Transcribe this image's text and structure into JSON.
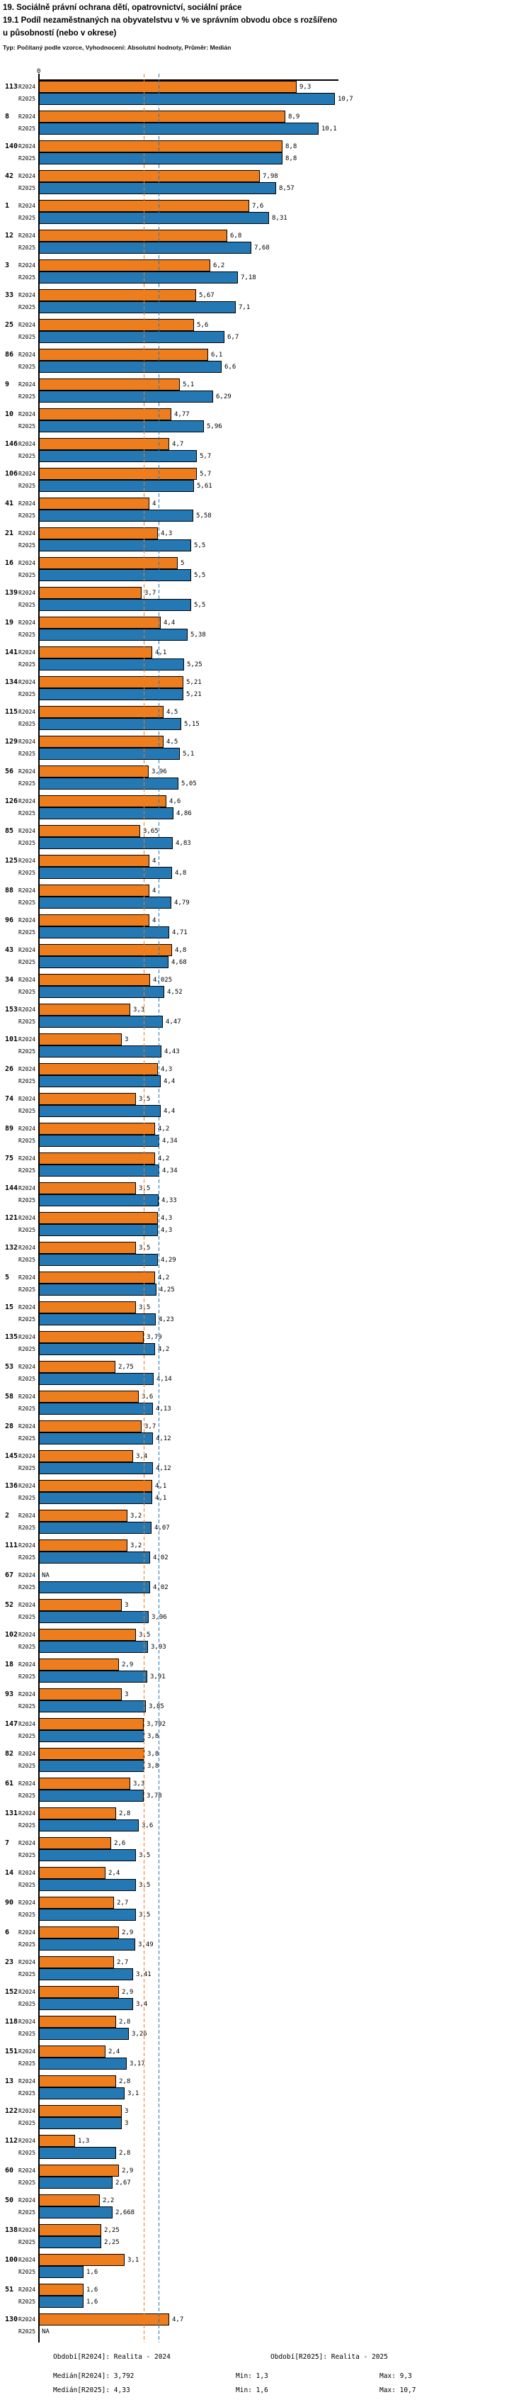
{
  "title": {
    "line1": "19. Sociálně právní ochrana dětí, opatrovnictví, sociální práce",
    "line2": "19.1 Podíl nezaměstnaných na obyvatelstvu v % ve správním obvodu obce s rozšířeno",
    "line3": "u působností (nebo v okrese)",
    "meta": "Typ: Počítaný podle vzorce, Vyhodnocení: Absolutní hodnoty, Průměr: Medián"
  },
  "chart_data": {
    "type": "bar",
    "orientation": "horizontal",
    "na_label": "NA",
    "axis": {
      "zero_label": "0",
      "xmin": 0,
      "xmax": 10.8,
      "grid": false
    },
    "series": [
      {
        "name": "R2024",
        "label": "Realita - 2024",
        "color": "#EE7D1E"
      },
      {
        "name": "R2025",
        "label": "Realita - 2025",
        "color": "#2478B4"
      }
    ],
    "medians": {
      "R2024": 3.792,
      "R2025": 4.33
    },
    "groups": [
      {
        "id": "113",
        "R2024": 9.3,
        "R2025": 10.7
      },
      {
        "id": "8",
        "R2024": 8.9,
        "R2025": 10.1
      },
      {
        "id": "140",
        "R2024": 8.8,
        "R2025": 8.8
      },
      {
        "id": "42",
        "R2024": 7.98,
        "R2025": 8.57
      },
      {
        "id": "1",
        "R2024": 7.6,
        "R2025": 8.31
      },
      {
        "id": "12",
        "R2024": 6.8,
        "R2025": 7.68
      },
      {
        "id": "3",
        "R2024": 6.2,
        "R2025": 7.18
      },
      {
        "id": "33",
        "R2024": 5.67,
        "R2025": 7.1
      },
      {
        "id": "25",
        "R2024": 5.6,
        "R2025": 6.7
      },
      {
        "id": "86",
        "R2024": 6.1,
        "R2025": 6.6
      },
      {
        "id": "9",
        "R2024": 5.1,
        "R2025": 6.29
      },
      {
        "id": "10",
        "R2024": 4.77,
        "R2025": 5.96
      },
      {
        "id": "146",
        "R2024": 4.7,
        "R2025": 5.7
      },
      {
        "id": "106",
        "R2024": 5.7,
        "R2025": 5.61
      },
      {
        "id": "41",
        "R2024": 4,
        "R2025": 5.58
      },
      {
        "id": "21",
        "R2024": 4.3,
        "R2025": 5.5
      },
      {
        "id": "16",
        "R2024": 5,
        "R2025": 5.5
      },
      {
        "id": "139",
        "R2024": 3.7,
        "R2025": 5.5
      },
      {
        "id": "19",
        "R2024": 4.4,
        "R2025": 5.38
      },
      {
        "id": "141",
        "R2024": 4.1,
        "R2025": 5.25
      },
      {
        "id": "134",
        "R2024": 5.21,
        "R2025": 5.21
      },
      {
        "id": "115",
        "R2024": 4.5,
        "R2025": 5.15
      },
      {
        "id": "129",
        "R2024": 4.5,
        "R2025": 5.1
      },
      {
        "id": "56",
        "R2024": 3.96,
        "R2025": 5.05
      },
      {
        "id": "126",
        "R2024": 4.6,
        "R2025": 4.86
      },
      {
        "id": "85",
        "R2024": 3.65,
        "R2025": 4.83
      },
      {
        "id": "125",
        "R2024": 4,
        "R2025": 4.8
      },
      {
        "id": "88",
        "R2024": 4,
        "R2025": 4.79
      },
      {
        "id": "96",
        "R2024": 4,
        "R2025": 4.71
      },
      {
        "id": "43",
        "R2024": 4.8,
        "R2025": 4.68
      },
      {
        "id": "34",
        "R2024": 4.025,
        "R2025": 4.52
      },
      {
        "id": "153",
        "R2024": 3.3,
        "R2025": 4.47
      },
      {
        "id": "101",
        "R2024": 3,
        "R2025": 4.43
      },
      {
        "id": "26",
        "R2024": 4.3,
        "R2025": 4.4
      },
      {
        "id": "74",
        "R2024": 3.5,
        "R2025": 4.4
      },
      {
        "id": "89",
        "R2024": 4.2,
        "R2025": 4.34
      },
      {
        "id": "75",
        "R2024": 4.2,
        "R2025": 4.34
      },
      {
        "id": "144",
        "R2024": 3.5,
        "R2025": 4.33
      },
      {
        "id": "121",
        "R2024": 4.3,
        "R2025": 4.3
      },
      {
        "id": "132",
        "R2024": 3.5,
        "R2025": 4.29
      },
      {
        "id": "5",
        "R2024": 4.2,
        "R2025": 4.25
      },
      {
        "id": "15",
        "R2024": 3.5,
        "R2025": 4.23
      },
      {
        "id": "135",
        "R2024": 3.79,
        "R2025": 4.2
      },
      {
        "id": "53",
        "R2024": 2.75,
        "R2025": 4.14
      },
      {
        "id": "58",
        "R2024": 3.6,
        "R2025": 4.13
      },
      {
        "id": "28",
        "R2024": 3.7,
        "R2025": 4.12
      },
      {
        "id": "145",
        "R2024": 3.4,
        "R2025": 4.12
      },
      {
        "id": "136",
        "R2024": 4.1,
        "R2025": 4.1
      },
      {
        "id": "2",
        "R2024": 3.2,
        "R2025": 4.07
      },
      {
        "id": "111",
        "R2024": 3.2,
        "R2025": 4.02
      },
      {
        "id": "67",
        "R2024": null,
        "R2025": 4.02
      },
      {
        "id": "52",
        "R2024": 3,
        "R2025": 3.96
      },
      {
        "id": "102",
        "R2024": 3.5,
        "R2025": 3.93
      },
      {
        "id": "18",
        "R2024": 2.9,
        "R2025": 3.91
      },
      {
        "id": "93",
        "R2024": 3,
        "R2025": 3.85
      },
      {
        "id": "147",
        "R2024": 3.792,
        "R2025": 3.8
      },
      {
        "id": "82",
        "R2024": 3.8,
        "R2025": 3.8
      },
      {
        "id": "61",
        "R2024": 3.3,
        "R2025": 3.78
      },
      {
        "id": "131",
        "R2024": 2.8,
        "R2025": 3.6
      },
      {
        "id": "7",
        "R2024": 2.6,
        "R2025": 3.5
      },
      {
        "id": "14",
        "R2024": 2.4,
        "R2025": 3.5
      },
      {
        "id": "90",
        "R2024": 2.7,
        "R2025": 3.5
      },
      {
        "id": "6",
        "R2024": 2.9,
        "R2025": 3.49
      },
      {
        "id": "23",
        "R2024": 2.7,
        "R2025": 3.41
      },
      {
        "id": "152",
        "R2024": 2.9,
        "R2025": 3.4
      },
      {
        "id": "118",
        "R2024": 2.8,
        "R2025": 3.26
      },
      {
        "id": "151",
        "R2024": 2.4,
        "R2025": 3.17
      },
      {
        "id": "13",
        "R2024": 2.8,
        "R2025": 3.1
      },
      {
        "id": "122",
        "R2024": 3,
        "R2025": 3
      },
      {
        "id": "112",
        "R2024": 1.3,
        "R2025": 2.8
      },
      {
        "id": "60",
        "R2024": 2.9,
        "R2025": 2.67
      },
      {
        "id": "50",
        "R2024": 2.2,
        "R2025": 2.668
      },
      {
        "id": "138",
        "R2024": 2.25,
        "R2025": 2.25
      },
      {
        "id": "100",
        "R2024": 3.1,
        "R2025": 1.6
      },
      {
        "id": "51",
        "R2024": 1.6,
        "R2025": 1.6
      },
      {
        "id": "130",
        "R2024": 4.7,
        "R2025": null
      }
    ]
  },
  "footer": {
    "obdobi_r2024": "Období[R2024]: Realita - 2024",
    "obdobi_r2025": "Období[R2025]: Realita - 2025",
    "median_r2024": "Medián[R2024]: 3,792",
    "median_r2025": "Medián[R2025]: 4,33",
    "min_r2024": "Min: 1,3",
    "min_r2025": "Min: 1,6",
    "max_r2024": "Max: 9,3",
    "max_r2025": "Max: 10,7"
  }
}
